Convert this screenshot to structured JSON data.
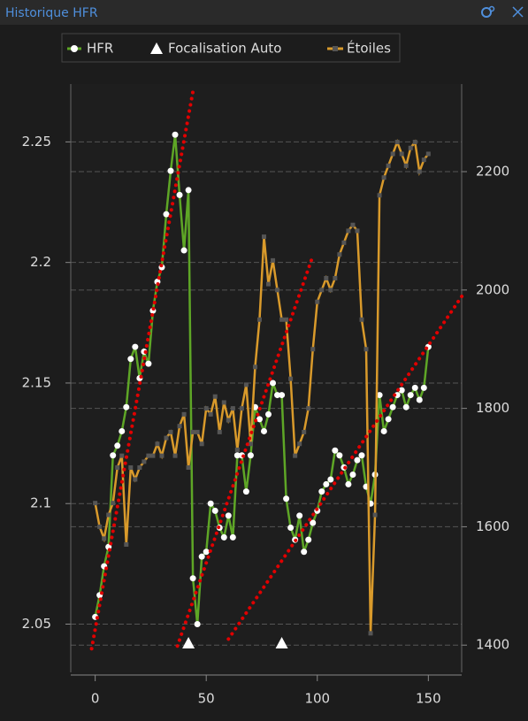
{
  "header": {
    "title": "Historique HFR"
  },
  "chart_data": {
    "type": "line",
    "legend": [
      "HFR",
      "Focalisation Auto",
      "Étoiles"
    ],
    "xlim": [
      -11,
      165
    ],
    "xticks": [
      0,
      50,
      100,
      150
    ],
    "ylim": [
      2.03,
      2.274
    ],
    "yticks": [
      2.05,
      2.1,
      2.15,
      2.2,
      2.25
    ],
    "y2lim": [
      1354,
      2348
    ],
    "y2ticks": [
      1400,
      1600,
      1800,
      2000,
      2200
    ],
    "grid": true,
    "x": [
      0,
      2,
      4,
      6,
      8,
      10,
      12,
      14,
      16,
      18,
      20,
      22,
      24,
      26,
      28,
      30,
      32,
      34,
      36,
      38,
      40,
      42,
      44,
      46,
      48,
      50,
      52,
      54,
      56,
      58,
      60,
      62,
      64,
      66,
      68,
      70,
      72,
      74,
      76,
      78,
      80,
      82,
      84,
      86,
      88,
      90,
      92,
      94,
      96,
      98,
      100,
      102,
      104,
      106,
      108,
      110,
      112,
      114,
      116,
      118,
      120,
      122,
      124,
      126,
      128,
      130,
      132,
      134,
      136,
      138,
      140,
      142,
      144,
      146,
      148,
      150
    ],
    "series": [
      {
        "name": "HFR",
        "color": "#5ea626",
        "values": [
          2.053,
          2.062,
          2.074,
          2.082,
          2.12,
          2.124,
          2.13,
          2.14,
          2.16,
          2.165,
          2.152,
          2.163,
          2.158,
          2.18,
          2.192,
          2.198,
          2.22,
          2.238,
          2.253,
          2.228,
          2.205,
          2.23,
          2.069,
          2.05,
          2.078,
          2.08,
          2.1,
          2.097,
          2.09,
          2.086,
          2.095,
          2.086,
          2.12,
          2.12,
          2.105,
          2.12,
          2.14,
          2.135,
          2.13,
          2.137,
          2.15,
          2.145,
          2.145,
          2.102,
          2.09,
          2.085,
          2.095,
          2.08,
          2.085,
          2.092,
          2.097,
          2.105,
          2.108,
          2.11,
          2.122,
          2.12,
          2.115,
          2.108,
          2.112,
          2.118,
          2.12,
          2.107,
          2.1,
          2.112,
          2.145,
          2.13,
          2.135,
          2.14,
          2.145,
          2.147,
          2.14,
          2.145,
          2.148,
          2.143,
          2.148,
          2.165
        ]
      },
      {
        "name": "Étoiles",
        "color": "#d99a2b",
        "axis": "y2",
        "values": [
          1640,
          1600,
          1580,
          1620,
          1640,
          1700,
          1720,
          1570,
          1700,
          1680,
          1700,
          1710,
          1720,
          1720,
          1740,
          1720,
          1750,
          1760,
          1720,
          1770,
          1790,
          1700,
          1760,
          1760,
          1740,
          1800,
          1790,
          1820,
          1760,
          1810,
          1780,
          1800,
          1730,
          1800,
          1840,
          1740,
          1870,
          1950,
          2090,
          2010,
          2050,
          2000,
          1950,
          1950,
          1850,
          1720,
          1740,
          1760,
          1800,
          1900,
          1980,
          2000,
          2020,
          2000,
          2020,
          2060,
          2080,
          2100,
          2110,
          2100,
          1950,
          1900,
          1420,
          1620,
          2160,
          2190,
          2210,
          2230,
          2250,
          2230,
          2210,
          2240,
          2250,
          2200,
          2220,
          2230
        ]
      }
    ],
    "autofocus": {
      "name": "Focalisation Auto",
      "x": [
        42,
        84
      ]
    },
    "trendlines": [
      {
        "color": "#e00000",
        "x": [
          -1.6,
          44.2
        ],
        "y": [
          2.0398,
          2.2719
        ]
      },
      {
        "color": "#e00000",
        "x": [
          37,
          97.5
        ],
        "y": [
          2.0409,
          2.2014
        ]
      },
      {
        "color": "#e00000",
        "x": [
          60,
          165.9
        ],
        "y": [
          2.0438,
          2.1871
        ]
      }
    ]
  }
}
